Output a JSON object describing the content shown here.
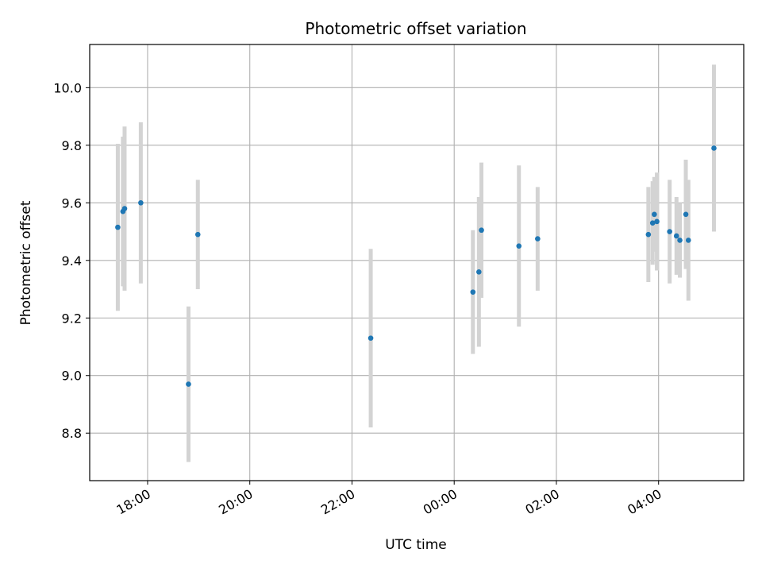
{
  "chart_data": {
    "type": "scatter",
    "title": "Photometric offset variation",
    "xlabel": "UTC time",
    "ylabel": "Photometric offset",
    "x_axis_type": "time",
    "x_reference_date": "",
    "xlim": [
      "16:52",
      "05:40"
    ],
    "ylim": [
      8.635,
      10.15
    ],
    "xticks": [
      {
        "t": "18:00",
        "label": "18:00"
      },
      {
        "t": "20:00",
        "label": "20:00"
      },
      {
        "t": "22:00",
        "label": "22:00"
      },
      {
        "t": "00:00",
        "label": "00:00"
      },
      {
        "t": "02:00",
        "label": "02:00"
      },
      {
        "t": "04:00",
        "label": "04:00"
      }
    ],
    "yticks": [
      8.8,
      9.0,
      9.2,
      9.4,
      9.6,
      9.8,
      10.0
    ],
    "ytick_labels": [
      "8.8",
      "9.0",
      "9.2",
      "9.4",
      "9.6",
      "9.8",
      "10.0"
    ],
    "grid": true,
    "colors": {
      "points": "#1f77b4",
      "errorbars": "#d3d3d3",
      "grid": "#b0b0b0"
    },
    "series": [
      {
        "points": [
          {
            "t": "17:25",
            "y": 9.515,
            "err": 0.29
          },
          {
            "t": "17:31",
            "y": 9.57,
            "err": 0.26
          },
          {
            "t": "17:33",
            "y": 9.58,
            "err": 0.285
          },
          {
            "t": "17:52",
            "y": 9.6,
            "err": 0.28
          },
          {
            "t": "18:48",
            "y": 8.97,
            "err": 0.27
          },
          {
            "t": "18:59",
            "y": 9.49,
            "err": 0.19
          },
          {
            "t": "22:22",
            "y": 9.13,
            "err": 0.31
          },
          {
            "t": "00:22",
            "y": 9.29,
            "err": 0.215
          },
          {
            "t": "00:29",
            "y": 9.36,
            "err": 0.26
          },
          {
            "t": "00:32",
            "y": 9.505,
            "err": 0.235
          },
          {
            "t": "01:16",
            "y": 9.45,
            "err": 0.28
          },
          {
            "t": "01:38",
            "y": 9.475,
            "err": 0.18
          },
          {
            "t": "03:48",
            "y": 9.49,
            "err": 0.165
          },
          {
            "t": "03:53",
            "y": 9.53,
            "err": 0.145
          },
          {
            "t": "03:55",
            "y": 9.56,
            "err": 0.13
          },
          {
            "t": "03:58",
            "y": 9.535,
            "err": 0.17
          },
          {
            "t": "04:13",
            "y": 9.5,
            "err": 0.18
          },
          {
            "t": "04:21",
            "y": 9.485,
            "err": 0.135
          },
          {
            "t": "04:25",
            "y": 9.47,
            "err": 0.13
          },
          {
            "t": "04:32",
            "y": 9.56,
            "err": 0.19
          },
          {
            "t": "04:35",
            "y": 9.47,
            "err": 0.21
          },
          {
            "t": "05:05",
            "y": 9.79,
            "err": 0.29
          }
        ]
      }
    ]
  }
}
